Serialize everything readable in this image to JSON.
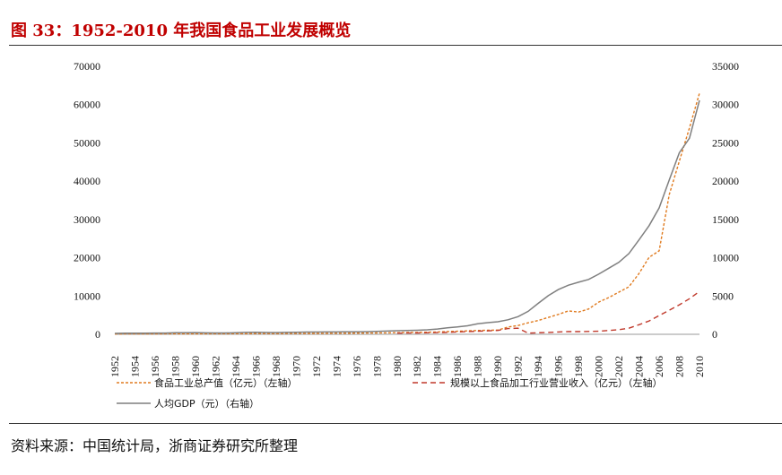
{
  "title": "图 33：1952-2010 年我国食品工业发展概览",
  "source": "资料来源：中国统计局，浙商证券研究所整理",
  "chart_data": {
    "type": "line",
    "x": [
      1952,
      1953,
      1954,
      1955,
      1956,
      1957,
      1958,
      1959,
      1960,
      1961,
      1962,
      1963,
      1964,
      1965,
      1966,
      1967,
      1968,
      1969,
      1970,
      1971,
      1972,
      1973,
      1974,
      1975,
      1976,
      1977,
      1978,
      1979,
      1980,
      1981,
      1982,
      1983,
      1984,
      1985,
      1986,
      1987,
      1988,
      1989,
      1990,
      1991,
      1992,
      1993,
      1994,
      1995,
      1996,
      1997,
      1998,
      1999,
      2000,
      2001,
      2002,
      2003,
      2004,
      2005,
      2006,
      2007,
      2008,
      2009,
      2010
    ],
    "xticks": [
      "1952",
      "1954",
      "1956",
      "1958",
      "1960",
      "1962",
      "1964",
      "1966",
      "1968",
      "1970",
      "1972",
      "1974",
      "1976",
      "1978",
      "1980",
      "1982",
      "1984",
      "1986",
      "1988",
      "1990",
      "1992",
      "1994",
      "1996",
      "1998",
      "2000",
      "2002",
      "2004",
      "2006",
      "2008",
      "2010"
    ],
    "ylim_left": [
      0,
      70000
    ],
    "yticks_left": [
      "0",
      "10000",
      "20000",
      "30000",
      "40000",
      "50000",
      "60000",
      "70000"
    ],
    "ylim_right": [
      0,
      35000
    ],
    "yticks_right": [
      "0",
      "5000",
      "10000",
      "15000",
      "20000",
      "25000",
      "30000",
      "35000"
    ],
    "legend_position": "bottom",
    "series": [
      {
        "name": "食品工业总产值（亿元）（左轴）",
        "axis": "left",
        "style": "dotted",
        "color": "#e07b20",
        "values": [
          80,
          90,
          100,
          110,
          120,
          125,
          140,
          150,
          150,
          140,
          140,
          150,
          160,
          170,
          180,
          180,
          180,
          200,
          220,
          230,
          240,
          260,
          270,
          290,
          300,
          320,
          350,
          380,
          420,
          460,
          500,
          540,
          600,
          700,
          800,
          900,
          1000,
          1050,
          1100,
          1900,
          2300,
          3000,
          3600,
          4400,
          5200,
          6100,
          5800,
          6600,
          8400,
          9600,
          11000,
          12400,
          15900,
          20100,
          21800,
          36500,
          45200,
          53900,
          63000
        ]
      },
      {
        "name": "规模以上食品加工行业营业收入（亿元）（左轴）",
        "axis": "left",
        "style": "dashed",
        "color": "#c0392b",
        "values": [
          null,
          null,
          null,
          null,
          null,
          null,
          null,
          null,
          null,
          null,
          null,
          null,
          null,
          null,
          null,
          null,
          null,
          null,
          null,
          null,
          null,
          null,
          null,
          null,
          null,
          null,
          null,
          null,
          300,
          320,
          350,
          400,
          450,
          500,
          600,
          700,
          800,
          900,
          1000,
          1500,
          1600,
          300,
          400,
          500,
          600,
          700,
          700,
          750,
          800,
          1000,
          1200,
          1600,
          2500,
          3500,
          4900,
          6300,
          7700,
          9300,
          11200
        ]
      },
      {
        "name": "人均GDP（元）（右轴）",
        "axis": "right",
        "style": "solid",
        "color": "#7f7f7f",
        "values": [
          119,
          142,
          144,
          150,
          166,
          168,
          200,
          216,
          218,
          185,
          173,
          181,
          208,
          240,
          254,
          235,
          222,
          243,
          275,
          288,
          292,
          309,
          310,
          327,
          316,
          339,
          381,
          419,
          463,
          492,
          528,
          583,
          695,
          858,
          963,
          1112,
          1366,
          1519,
          1644,
          1893,
          2311,
          2998,
          4044,
          5046,
          5846,
          6420,
          6796,
          7159,
          7858,
          8622,
          9398,
          10542,
          12336,
          14185,
          16500,
          20169,
          23708,
          25608,
          30567
        ]
      }
    ]
  }
}
